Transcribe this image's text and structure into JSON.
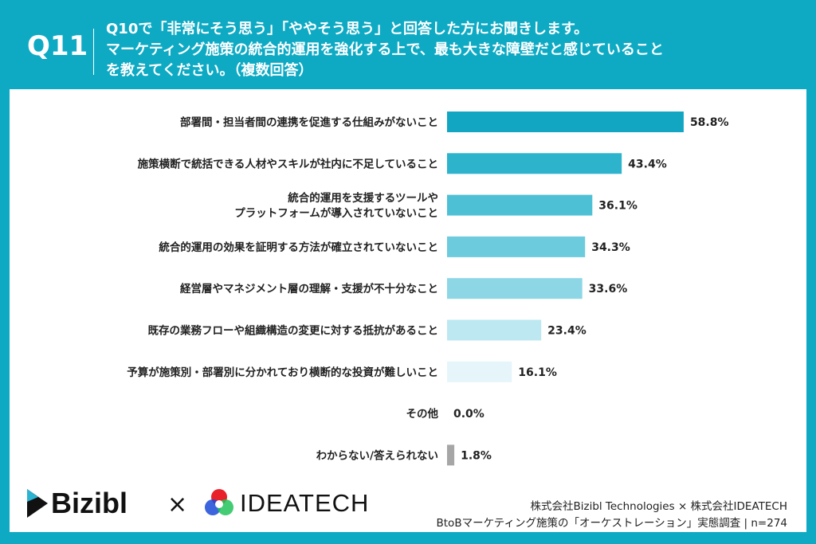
{
  "header": {
    "question_number": "Q11",
    "question_lines": [
      "Q10で「非常にそう思う」「ややそう思う」と回答した方にお聞きします。",
      "マーケティング施策の統合的運用を強化する上で、最も大きな障壁だと感じていること",
      "を教えてください。（複数回答）"
    ]
  },
  "chart_data": {
    "type": "bar",
    "orientation": "horizontal",
    "categories": [
      [
        "部署間・担当者間の連携を促進する仕組みがないこと"
      ],
      [
        "施策横断で統括できる人材やスキルが社内に不足していること"
      ],
      [
        "統合的運用を支援するツールや",
        "プラットフォームが導入されていないこと"
      ],
      [
        "統合的運用の効果を証明する方法が確立されていないこと"
      ],
      [
        "経営層やマネジメント層の理解・支援が不十分なこと"
      ],
      [
        "既存の業務フローや組織構造の変更に対する抵抗があること"
      ],
      [
        "予算が施策別・部署別に分かれており横断的な投資が難しいこと"
      ],
      [
        "その他"
      ],
      [
        "わからない/答えられない"
      ]
    ],
    "values": [
      58.8,
      43.4,
      36.1,
      34.3,
      33.6,
      23.4,
      16.1,
      0.0,
      1.8
    ],
    "labels": [
      "58.8%",
      "43.4%",
      "36.1%",
      "34.3%",
      "33.6%",
      "23.4%",
      "16.1%",
      "0.0%",
      "1.8%"
    ],
    "colors": [
      "#12a6c3",
      "#2db3cc",
      "#4dc0d5",
      "#6ccbdd",
      "#8cd6e5",
      "#bde8f1",
      "#e6f5fa",
      "#e6f5fa",
      "#a6a6a6"
    ],
    "xlim": [
      0,
      100
    ],
    "grid": false
  },
  "footer": {
    "logo_left": "Bizibl",
    "times": "×",
    "logo_right": "IDEATECH",
    "source_lines": [
      "株式会社Bizibl Technologies × 株式会社IDEATECH",
      "BtoBマーケティング施策の「オーケストレーション」実態調査 | n=274"
    ]
  }
}
